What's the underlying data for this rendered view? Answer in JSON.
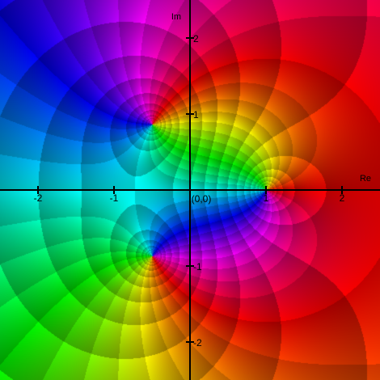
{
  "chart_data": {
    "type": "heatmap",
    "description_of_function": {
      "zeros": [
        [
          1,
          0
        ]
      ],
      "poles": [
        [
          -0.5,
          0.866
        ],
        [
          -0.5,
          -0.866
        ]
      ],
      "coloring": "hue = argument, darker bands = log-modulus contours"
    },
    "xlabel": "Re",
    "ylabel": "Im",
    "origin_label": "(0,0)",
    "xlim": [
      -2.5,
      2.5
    ],
    "ylim": [
      -2.5,
      2.5
    ],
    "x_ticks": [
      {
        "value": -2,
        "label": "-2"
      },
      {
        "value": -1,
        "label": "-1"
      },
      {
        "value": 1,
        "label": "1"
      },
      {
        "value": 2,
        "label": "2"
      }
    ],
    "y_ticks": [
      {
        "value": 2,
        "label": "2"
      },
      {
        "value": 1,
        "label": "1"
      },
      {
        "value": -1,
        "label": "-1"
      },
      {
        "value": -2,
        "label": "-2"
      }
    ],
    "grid": false
  }
}
